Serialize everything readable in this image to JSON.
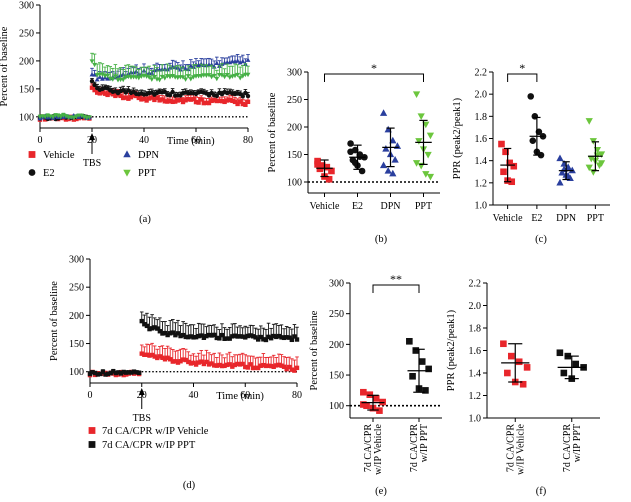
{
  "colors": {
    "vehicle": "#e8262b",
    "e2": "#111111",
    "dpn": "#2a3f9e",
    "ppt": "#6cc63d",
    "pptA": "#45b045",
    "ppt_d": "#111111"
  },
  "chart_data": [
    {
      "id": "a",
      "type": "line",
      "panel_label": "(a)",
      "xlabel": "Time (min)",
      "ylabel": "Percent of baseline",
      "xlim": [
        0,
        80
      ],
      "ylim": [
        80,
        300
      ],
      "xticks": [
        0,
        20,
        40,
        60,
        80
      ],
      "yticks": [
        100,
        150,
        200,
        250,
        300
      ],
      "baseline": 100,
      "annotation": "TBS",
      "annotation_x": 20,
      "series": [
        {
          "name": "Vehicle",
          "color_key": "vehicle",
          "marker": "square",
          "pre": 98,
          "post": [
            [
              20.5,
              150
            ],
            [
              22,
              142
            ],
            [
              25,
              140
            ],
            [
              30,
              136
            ],
            [
              40,
              133
            ],
            [
              50,
              130
            ],
            [
              60,
              129
            ],
            [
              70,
              127
            ],
            [
              80,
              125
            ]
          ],
          "err_factor": 0.2
        },
        {
          "name": "E2",
          "color_key": "e2",
          "marker": "circle",
          "pre": 99,
          "post": [
            [
              20.5,
              162
            ],
            [
              22,
              152
            ],
            [
              25,
              148
            ],
            [
              30,
              146
            ],
            [
              40,
              143
            ],
            [
              50,
              142
            ],
            [
              60,
              141
            ],
            [
              70,
              141
            ],
            [
              80,
              140
            ]
          ],
          "err_factor": 0.15
        },
        {
          "name": "DPN",
          "color_key": "dpn",
          "marker": "triangle",
          "pre": 99,
          "post": [
            [
              20.5,
              175
            ],
            [
              22,
              168
            ],
            [
              25,
              170
            ],
            [
              30,
              174
            ],
            [
              40,
              180
            ],
            [
              50,
              185
            ],
            [
              60,
              190
            ],
            [
              70,
              194
            ],
            [
              80,
              198
            ]
          ],
          "err_factor": 0.25
        },
        {
          "name": "PPT",
          "color_key": "pptA",
          "marker": "triangle-down",
          "pre": 100,
          "post": [
            [
              20.5,
              200
            ],
            [
              22,
              178
            ],
            [
              25,
              172
            ],
            [
              30,
              170
            ],
            [
              40,
              170
            ],
            [
              50,
              170
            ],
            [
              60,
              171
            ],
            [
              70,
              172
            ],
            [
              80,
              172
            ]
          ],
          "err_factor": 0.45
        }
      ]
    },
    {
      "id": "b",
      "type": "scatter",
      "panel_label": "(b)",
      "ylabel": "Percent of baseline",
      "ylim": [
        80,
        300
      ],
      "yticks": [
        100,
        150,
        200,
        250,
        300
      ],
      "baseline": 100,
      "categories": [
        "Vehicle",
        "E2",
        "DPN",
        "PPT"
      ],
      "significance": [
        {
          "from": 0,
          "to": 3,
          "label": "*"
        }
      ],
      "groups": [
        {
          "color_key": "vehicle",
          "marker": "square",
          "mean": 125,
          "sd": 15,
          "points": [
            138,
            130,
            127,
            120,
            124,
            110,
            105,
            132
          ]
        },
        {
          "color_key": "e2",
          "marker": "circle",
          "mean": 145,
          "sd": 22,
          "points": [
            170,
            158,
            150,
            145,
            140,
            130,
            120,
            155,
            135,
            146
          ]
        },
        {
          "color_key": "dpn",
          "marker": "triangle",
          "mean": 163,
          "sd": 35,
          "points": [
            225,
            195,
            175,
            165,
            160,
            150,
            140,
            130,
            120,
            115
          ]
        },
        {
          "color_key": "ppt",
          "marker": "triangle-down",
          "mean": 172,
          "sd": 40,
          "points": [
            260,
            220,
            205,
            185,
            175,
            160,
            150,
            135,
            130,
            115,
            110
          ]
        }
      ]
    },
    {
      "id": "c",
      "type": "scatter",
      "panel_label": "(c)",
      "ylabel": "PPR (peak2/peak1)",
      "ylim": [
        1.0,
        2.2
      ],
      "yticks": [
        "1.0",
        "1.2",
        "1.4",
        "1.6",
        "1.8",
        "2.0",
        "2.2"
      ],
      "categories": [
        "Vehicle",
        "E2",
        "DPN",
        "PPT"
      ],
      "significance": [
        {
          "from": 0,
          "to": 1,
          "label": "*"
        }
      ],
      "groups": [
        {
          "color_key": "vehicle",
          "marker": "square",
          "mean": 1.36,
          "sd": 0.15,
          "points": [
            1.55,
            1.48,
            1.38,
            1.35,
            1.3,
            1.22,
            1.21
          ]
        },
        {
          "color_key": "e2",
          "marker": "circle",
          "mean": 1.62,
          "sd": 0.17,
          "points": [
            1.98,
            1.8,
            1.66,
            1.62,
            1.58,
            1.48,
            1.45
          ]
        },
        {
          "color_key": "dpn",
          "marker": "triangle",
          "mean": 1.31,
          "sd": 0.08,
          "points": [
            1.42,
            1.37,
            1.34,
            1.31,
            1.29,
            1.27,
            1.24,
            1.2,
            1.32,
            1.26
          ]
        },
        {
          "color_key": "ppt",
          "marker": "triangle-down",
          "mean": 1.44,
          "sd": 0.13,
          "points": [
            1.76,
            1.58,
            1.5,
            1.46,
            1.42,
            1.4,
            1.36,
            1.34,
            1.3,
            1.45,
            1.38
          ]
        }
      ]
    },
    {
      "id": "d",
      "type": "line",
      "panel_label": "(d)",
      "xlabel": "Time (min)",
      "ylabel": "Percent of baseline",
      "xlim": [
        0,
        80
      ],
      "ylim": [
        80,
        300
      ],
      "xticks": [
        0,
        20,
        40,
        60,
        80
      ],
      "yticks": [
        100,
        150,
        200,
        250,
        300
      ],
      "baseline": 100,
      "annotation": "TBS",
      "annotation_x": 20,
      "series": [
        {
          "name": "7d CA/CPR w/IP Vehicle",
          "color_key": "vehicle",
          "marker": "square",
          "pre": 97,
          "post": [
            [
              20.5,
              130
            ],
            [
              23,
              128
            ],
            [
              28,
              122
            ],
            [
              35,
              118
            ],
            [
              45,
              115
            ],
            [
              55,
              112
            ],
            [
              65,
              110
            ],
            [
              75,
              108
            ],
            [
              80,
              105
            ]
          ],
          "err_factor": 0.45
        },
        {
          "name": "7d CA/CPR w/IP PPT",
          "color_key": "ppt_d",
          "marker": "square",
          "pre": 98,
          "post": [
            [
              20.5,
              188
            ],
            [
              23,
              178
            ],
            [
              28,
              170
            ],
            [
              35,
              165
            ],
            [
              45,
              163
            ],
            [
              55,
              162
            ],
            [
              65,
              160
            ],
            [
              75,
              160
            ],
            [
              80,
              160
            ]
          ],
          "err_factor": 0.5
        }
      ]
    },
    {
      "id": "e",
      "type": "scatter",
      "panel_label": "(e)",
      "ylabel": "Percent of baseline",
      "ylim": [
        80,
        300
      ],
      "yticks": [
        100,
        150,
        200,
        250,
        300
      ],
      "baseline": 100,
      "categories": [
        "7d CA/CPR w/IP Vehicle",
        "7d CA/CPR w/IP PPT"
      ],
      "significance": [
        {
          "from": 0,
          "to": 1,
          "label": "**"
        }
      ],
      "groups": [
        {
          "color_key": "vehicle",
          "marker": "square",
          "mean": 105,
          "sd": 12,
          "points": [
            122,
            118,
            112,
            106,
            100,
            96,
            92,
            102
          ]
        },
        {
          "color_key": "ppt_d",
          "marker": "square",
          "mean": 157,
          "sd": 35,
          "points": [
            205,
            190,
            172,
            160,
            148,
            128,
            125
          ]
        }
      ]
    },
    {
      "id": "f",
      "type": "scatter",
      "panel_label": "(f)",
      "ylabel": "PPR (peak2/peak1)",
      "ylim": [
        1.0,
        2.2
      ],
      "yticks": [
        "1.0",
        "1.2",
        "1.4",
        "1.6",
        "1.8",
        "2.0",
        "2.2"
      ],
      "categories": [
        "7d CA/CPR w/IP Vehicle",
        "7d CA/CPR w/IP PPT"
      ],
      "significance": [],
      "groups": [
        {
          "color_key": "vehicle",
          "marker": "square",
          "mean": 1.49,
          "sd": 0.17,
          "points": [
            1.66,
            1.55,
            1.5,
            1.45,
            1.4,
            1.32,
            1.3
          ]
        },
        {
          "color_key": "ppt_d",
          "marker": "square",
          "mean": 1.45,
          "sd": 0.1,
          "points": [
            1.58,
            1.55,
            1.48,
            1.45,
            1.4,
            1.35
          ]
        }
      ]
    }
  ],
  "legend_a": [
    {
      "label": "Vehicle",
      "color_key": "vehicle",
      "marker": "square"
    },
    {
      "label": "E2",
      "color_key": "e2",
      "marker": "circle"
    },
    {
      "label": "DPN",
      "color_key": "dpn",
      "marker": "triangle"
    },
    {
      "label": "PPT",
      "color_key": "ppt",
      "marker": "triangle-down"
    }
  ],
  "legend_d": [
    {
      "label": "7d CA/CPR w/IP Vehicle",
      "color_key": "vehicle",
      "marker": "square"
    },
    {
      "label": "7d CA/CPR w/IP PPT",
      "color_key": "ppt_d",
      "marker": "square"
    }
  ]
}
